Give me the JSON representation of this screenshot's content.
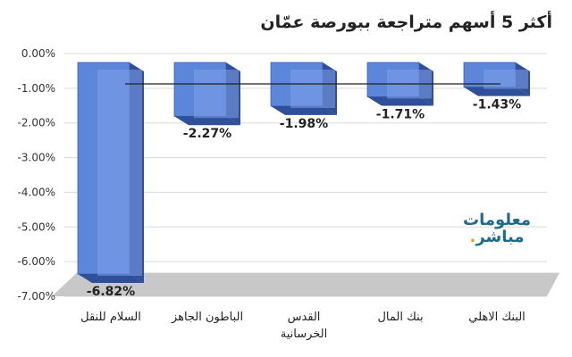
{
  "chart_data": {
    "type": "bar",
    "title": "أكثر 5 أسهم متراجعة ببورصة عمّان",
    "categories": [
      "السلام للنقل",
      "الباطون الجاهز",
      "القدس الخرسانية",
      "بنك المال",
      "البنك الاهلي"
    ],
    "values": [
      -6.82,
      -2.27,
      -1.98,
      -1.71,
      -1.43
    ],
    "data_labels": [
      "-6.82%",
      "-2.27%",
      "-1.98%",
      "-1.71%",
      "-1.43%"
    ],
    "y_ticks": [
      "0.00%",
      "-1.00%",
      "-2.00%",
      "-3.00%",
      "-4.00%",
      "-5.00%",
      "-6.00%",
      "-7.00%"
    ],
    "ylim": [
      -7,
      0
    ],
    "grid": true,
    "legend": "none",
    "colors": {
      "bar": "#5b86d9",
      "bar_dark": "#2f4f9a",
      "bar_top": "#7fa3ea",
      "floor": "#c8c8c8"
    }
  },
  "watermark": {
    "line1": "معلومات",
    "line2": "مباشر",
    "dot": "."
  }
}
